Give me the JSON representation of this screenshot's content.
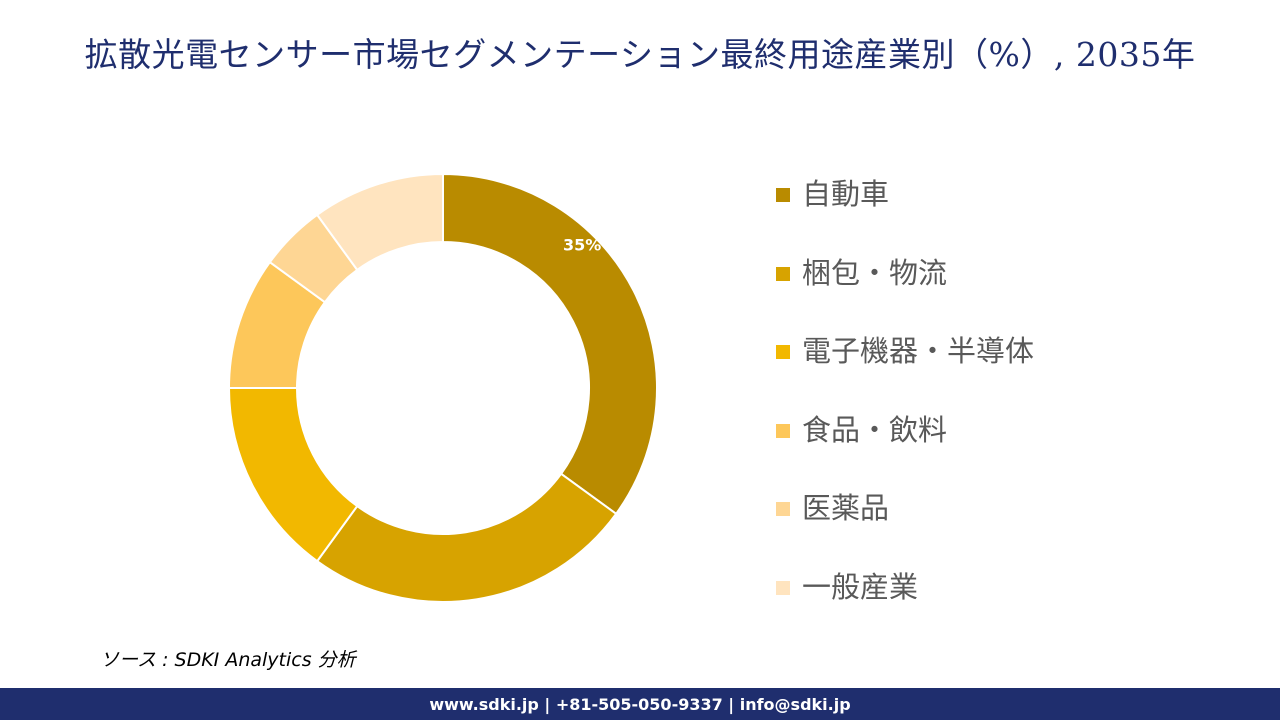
{
  "title": "拡散光電センサー市場セグメンテーション最終用途産業別（%）, 2035年",
  "chart_data": {
    "type": "pie",
    "title": "拡散光電センサー市場セグメンテーション最終用途産業別（%）, 2035年",
    "categories": [
      "自動車",
      "梱包・物流",
      "電子機器・半導体",
      "食品・飲料",
      "医薬品",
      "一般産業"
    ],
    "values": [
      35,
      25,
      15,
      10,
      5,
      10
    ],
    "data_labels": [
      "35%",
      "",
      "",
      "",
      "",
      ""
    ],
    "colors": [
      "#b98b00",
      "#d7a300",
      "#f2b800",
      "#fdc75a",
      "#fed694",
      "#ffe4bf"
    ],
    "donut": true,
    "legend_position": "right"
  },
  "source": "ソース : SDKI Analytics 分析",
  "footer": {
    "text": "www.sdki.jp | +81-505-050-9337 | info@sdki.jp"
  }
}
